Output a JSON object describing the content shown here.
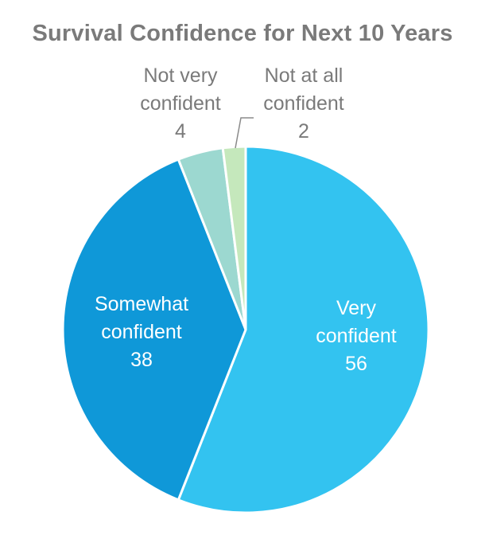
{
  "chart_data": {
    "type": "pie",
    "title": "Survival Confidence for Next 10 Years",
    "slices": [
      {
        "label_lines": [
          "Very",
          "confident"
        ],
        "value": 56,
        "value_text": "56",
        "color": "#33c3f0",
        "label_color": "#ffffff"
      },
      {
        "label_lines": [
          "Somewhat",
          "confident"
        ],
        "value": 38,
        "value_text": "38",
        "color": "#0f98d8",
        "label_color": "#ffffff"
      },
      {
        "label_lines": [
          "Not very",
          "confident"
        ],
        "value": 4,
        "value_text": "4",
        "color": "#9cd8d0",
        "label_color": "#7a7a7a"
      },
      {
        "label_lines": [
          "Not at all",
          "confident"
        ],
        "value": 2,
        "value_text": "2",
        "color": "#c5e8bc",
        "label_color": "#7a7a7a"
      }
    ],
    "start_angle": "12 o'clock",
    "direction": "clockwise",
    "legend": "none"
  }
}
